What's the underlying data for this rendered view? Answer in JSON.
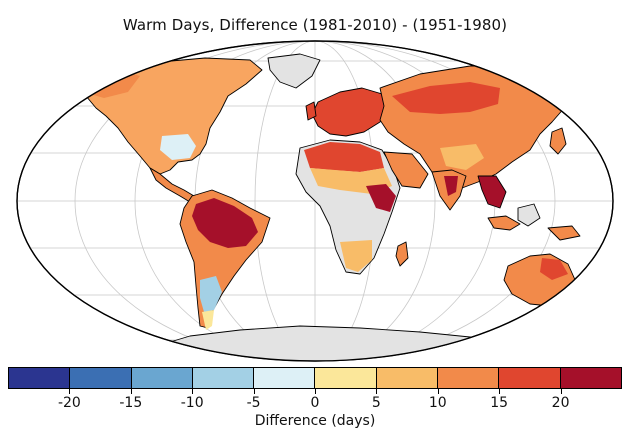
{
  "title": "Warm Days, Difference (1981-2010) - (1951-1980)",
  "colorbar": {
    "label": "Difference (days)",
    "ticks": [
      "-20",
      "-15",
      "-10",
      "-5",
      "0",
      "5",
      "10",
      "15",
      "20"
    ],
    "tick_values": [
      -20,
      -15,
      -10,
      -5,
      0,
      5,
      10,
      15,
      20
    ],
    "range": [
      -25,
      25
    ],
    "colors": [
      "#2b3590",
      "#3b6fb3",
      "#6aa6d0",
      "#a3d0e5",
      "#ddf0f6",
      "#fbe79a",
      "#f8bc68",
      "#f28a4a",
      "#e0462f",
      "#a5102a"
    ]
  },
  "map_colors": {
    "ocean": "#ffffff",
    "no_data": "#e3e3e3",
    "coast": "#000000",
    "graticule": "#c8c8c8"
  }
}
